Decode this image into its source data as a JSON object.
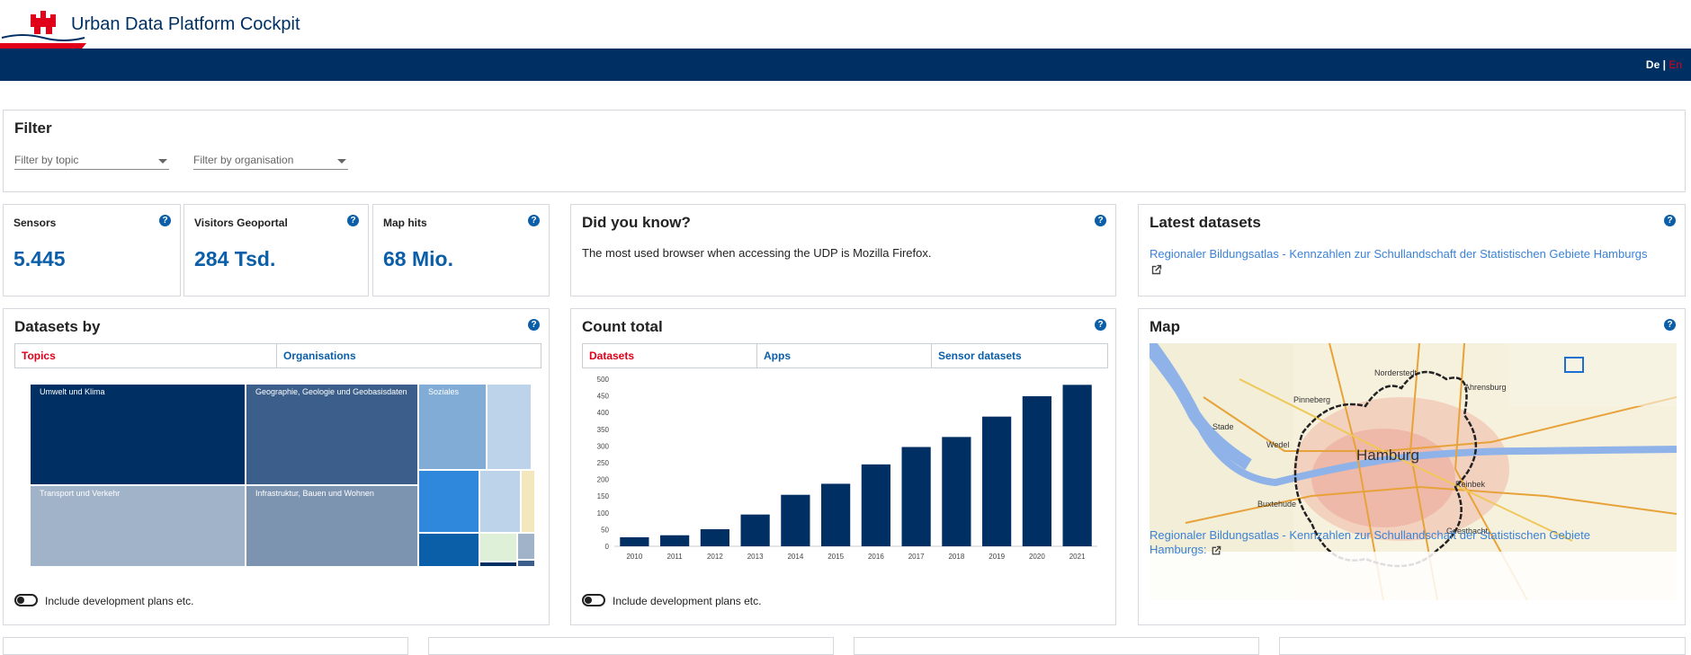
{
  "app": {
    "title": "Urban Data Platform Cockpit"
  },
  "language": {
    "de": "De",
    "separator": "|",
    "en": "En"
  },
  "filter": {
    "title": "Filter",
    "topic_placeholder": "Filter by topic",
    "organisation_placeholder": "Filter by organisation"
  },
  "stats": {
    "sensors": {
      "label": "Sensors",
      "value": "5.445"
    },
    "visitors": {
      "label": "Visitors Geoportal",
      "value": "284 Tsd."
    },
    "maphits": {
      "label": "Map hits",
      "value": "68 Mio."
    }
  },
  "didyouknow": {
    "title": "Did you know?",
    "text": "The most used browser when accessing the UDP is Mozilla Firefox."
  },
  "latest": {
    "title": "Latest datasets",
    "link": "Regionaler Bildungsatlas - Kennzahlen zur Schullandschaft der Statistischen Gebiete Hamburgs"
  },
  "datasets_by": {
    "title": "Datasets by",
    "tabs": [
      "Topics",
      "Organisations"
    ],
    "treemap_labels": {
      "umwelt": "Umwelt und Klima",
      "geographie": "Geographie, Geologie und Geobasisdaten",
      "soziales": "Soziales",
      "transport": "Transport und Verkehr",
      "infrastruktur": "Infrastruktur, Bauen und Wohnen"
    },
    "toggle_label": "Include development plans etc."
  },
  "count_total": {
    "title": "Count total",
    "tabs": [
      "Datasets",
      "Apps",
      "Sensor datasets"
    ],
    "toggle_label": "Include development plans etc."
  },
  "map": {
    "title": "Map",
    "caption": "Regionaler Bildungsatlas - Kennzahlen zur Schullandschaft der Statistischen Gebiete Hamburgs:",
    "place_labels": {
      "hamburg": "Hamburg",
      "pinneberg": "Pinneberg",
      "wedel": "Wedel",
      "stade": "Stade",
      "buxtehude": "Buxtehude",
      "reinbek": "Reinbek",
      "ahrensburg": "Ahrensburg",
      "geesthacht": "Geesthacht",
      "norderstedt": "Norderstedt"
    }
  },
  "chart_data": {
    "type": "bar",
    "categories": [
      "2010",
      "2011",
      "2012",
      "2013",
      "2014",
      "2015",
      "2016",
      "2017",
      "2018",
      "2019",
      "2020",
      "2021"
    ],
    "values": [
      27,
      33,
      51,
      95,
      154,
      187,
      245,
      297,
      327,
      388,
      449,
      483
    ],
    "ylim": [
      0,
      500
    ],
    "yticks": [
      0,
      50,
      100,
      150,
      200,
      250,
      300,
      350,
      400,
      450,
      500
    ],
    "color": "#003063",
    "grid": false
  },
  "colors": {
    "brand_blue": "#003063",
    "accent_red": "#e10019",
    "link_blue": "#3b82d6"
  }
}
